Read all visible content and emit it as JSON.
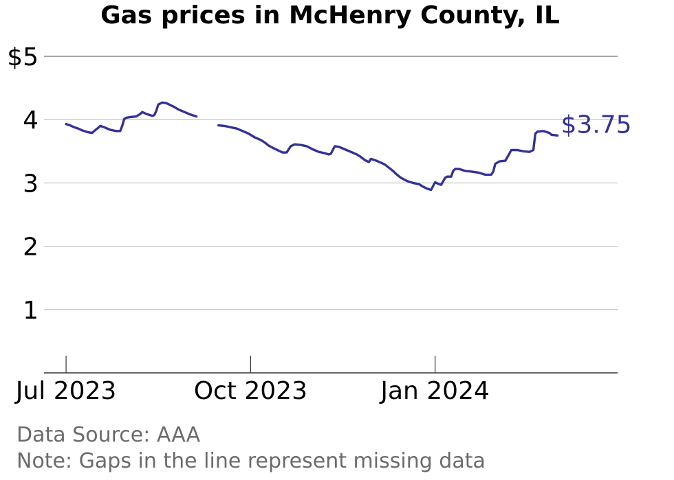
{
  "chart_data": {
    "type": "line",
    "title": "Gas prices in McHenry County, IL",
    "ylim": [
      0,
      5
    ],
    "y_ticks": [
      {
        "value": 5,
        "label": "$5"
      },
      {
        "value": 4,
        "label": "4"
      },
      {
        "value": 3,
        "label": "3"
      },
      {
        "value": 2,
        "label": "2"
      },
      {
        "value": 1,
        "label": "1"
      }
    ],
    "x_ticks": [
      {
        "date": "2023-07-01",
        "label": "Jul 2023"
      },
      {
        "date": "2023-10-01",
        "label": "Oct 2023"
      },
      {
        "date": "2024-01-01",
        "label": "Jan 2024"
      }
    ],
    "xlim": [
      "2023-06-20",
      "2024-04-01"
    ],
    "grid": true,
    "series": [
      {
        "color": "#33329a",
        "end_label": "$3.75",
        "segments": [
          [
            [
              "2023-07-01",
              3.93
            ],
            [
              "2023-07-03",
              3.91
            ],
            [
              "2023-07-05",
              3.88
            ],
            [
              "2023-07-07",
              3.86
            ],
            [
              "2023-07-09",
              3.83
            ],
            [
              "2023-07-12",
              3.8
            ],
            [
              "2023-07-14",
              3.79
            ],
            [
              "2023-07-15",
              3.82
            ],
            [
              "2023-07-17",
              3.87
            ],
            [
              "2023-07-18",
              3.9
            ],
            [
              "2023-07-20",
              3.88
            ],
            [
              "2023-07-23",
              3.84
            ],
            [
              "2023-07-26",
              3.82
            ],
            [
              "2023-07-28",
              3.82
            ],
            [
              "2023-07-29",
              3.9
            ],
            [
              "2023-07-30",
              4.01
            ],
            [
              "2023-07-31",
              4.03
            ],
            [
              "2023-08-02",
              4.04
            ],
            [
              "2023-08-05",
              4.05
            ],
            [
              "2023-08-07",
              4.09
            ],
            [
              "2023-08-08",
              4.12
            ],
            [
              "2023-08-10",
              4.09
            ],
            [
              "2023-08-13",
              4.06
            ],
            [
              "2023-08-14",
              4.07
            ],
            [
              "2023-08-15",
              4.14
            ],
            [
              "2023-08-16",
              4.24
            ],
            [
              "2023-08-18",
              4.27
            ],
            [
              "2023-08-20",
              4.26
            ],
            [
              "2023-08-22",
              4.23
            ],
            [
              "2023-08-24",
              4.2
            ],
            [
              "2023-08-26",
              4.16
            ],
            [
              "2023-08-29",
              4.12
            ],
            [
              "2023-09-01",
              4.08
            ],
            [
              "2023-09-04",
              4.05
            ]
          ],
          [
            [
              "2023-09-15",
              3.91
            ],
            [
              "2023-09-18",
              3.9
            ],
            [
              "2023-09-21",
              3.88
            ],
            [
              "2023-09-24",
              3.86
            ],
            [
              "2023-09-27",
              3.82
            ],
            [
              "2023-09-30",
              3.78
            ],
            [
              "2023-10-03",
              3.72
            ],
            [
              "2023-10-06",
              3.68
            ],
            [
              "2023-10-08",
              3.64
            ],
            [
              "2023-10-10",
              3.59
            ],
            [
              "2023-10-13",
              3.54
            ],
            [
              "2023-10-15",
              3.51
            ],
            [
              "2023-10-17",
              3.48
            ],
            [
              "2023-10-19",
              3.48
            ],
            [
              "2023-10-21",
              3.58
            ],
            [
              "2023-10-23",
              3.61
            ],
            [
              "2023-10-26",
              3.6
            ],
            [
              "2023-10-29",
              3.58
            ],
            [
              "2023-11-01",
              3.53
            ],
            [
              "2023-11-04",
              3.49
            ],
            [
              "2023-11-07",
              3.47
            ],
            [
              "2023-11-09",
              3.45
            ],
            [
              "2023-11-10",
              3.46
            ],
            [
              "2023-11-12",
              3.58
            ],
            [
              "2023-11-14",
              3.57
            ],
            [
              "2023-11-17",
              3.53
            ],
            [
              "2023-11-20",
              3.49
            ],
            [
              "2023-11-23",
              3.45
            ],
            [
              "2023-11-25",
              3.41
            ],
            [
              "2023-11-27",
              3.36
            ],
            [
              "2023-11-29",
              3.33
            ],
            [
              "2023-11-30",
              3.38
            ],
            [
              "2023-12-02",
              3.36
            ],
            [
              "2023-12-05",
              3.32
            ],
            [
              "2023-12-07",
              3.29
            ],
            [
              "2023-12-09",
              3.24
            ],
            [
              "2023-12-11",
              3.19
            ],
            [
              "2023-12-13",
              3.13
            ],
            [
              "2023-12-15",
              3.08
            ],
            [
              "2023-12-18",
              3.03
            ],
            [
              "2023-12-21",
              3.0
            ],
            [
              "2023-12-24",
              2.98
            ],
            [
              "2023-12-26",
              2.94
            ],
            [
              "2023-12-28",
              2.91
            ],
            [
              "2023-12-30",
              2.89
            ],
            [
              "2024-01-01",
              3.01
            ],
            [
              "2024-01-03",
              2.98
            ],
            [
              "2024-01-04",
              2.97
            ],
            [
              "2024-01-06",
              3.08
            ],
            [
              "2024-01-07",
              3.1
            ],
            [
              "2024-01-09",
              3.1
            ],
            [
              "2024-01-10",
              3.19
            ],
            [
              "2024-01-11",
              3.22
            ],
            [
              "2024-01-13",
              3.22
            ],
            [
              "2024-01-16",
              3.19
            ],
            [
              "2024-01-19",
              3.18
            ],
            [
              "2024-01-23",
              3.16
            ],
            [
              "2024-01-26",
              3.13
            ],
            [
              "2024-01-29",
              3.13
            ],
            [
              "2024-01-30",
              3.18
            ],
            [
              "2024-01-31",
              3.3
            ],
            [
              "2024-02-02",
              3.34
            ],
            [
              "2024-02-05",
              3.35
            ],
            [
              "2024-02-07",
              3.46
            ],
            [
              "2024-02-08",
              3.52
            ],
            [
              "2024-02-11",
              3.52
            ],
            [
              "2024-02-14",
              3.5
            ],
            [
              "2024-02-17",
              3.49
            ],
            [
              "2024-02-19",
              3.52
            ],
            [
              "2024-02-20",
              3.78
            ],
            [
              "2024-02-21",
              3.81
            ],
            [
              "2024-02-24",
              3.82
            ],
            [
              "2024-02-27",
              3.79
            ],
            [
              "2024-02-28",
              3.76
            ],
            [
              "2024-03-02",
              3.75
            ]
          ]
        ]
      }
    ]
  },
  "notes": {
    "source": "Data Source: AAA",
    "gaps": "Note: Gaps in the line represent missing data"
  }
}
